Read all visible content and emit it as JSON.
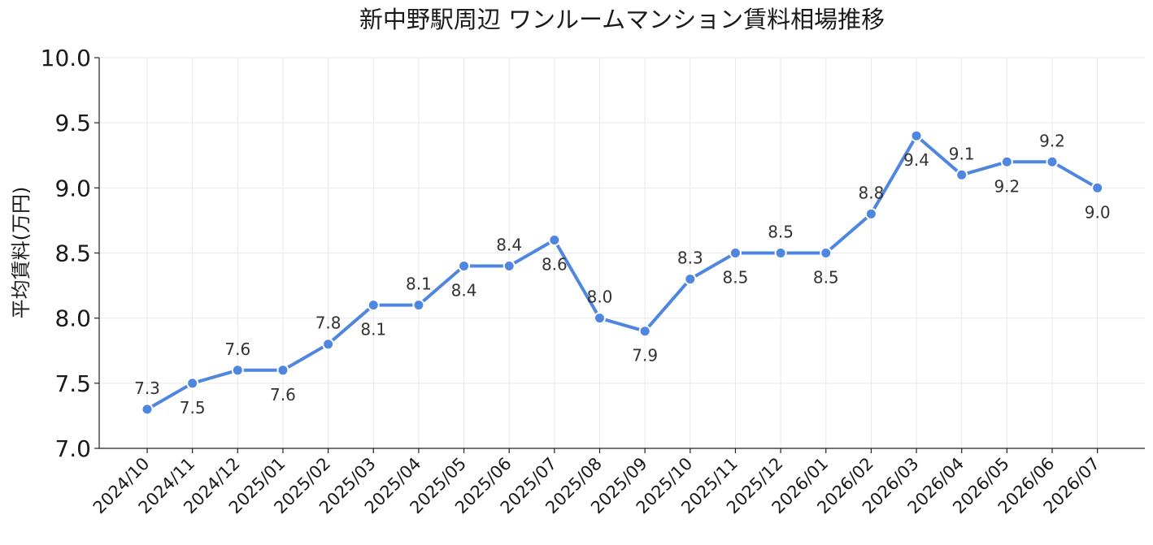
{
  "chart_data": {
    "type": "line",
    "title": "新中野駅周辺 ワンルームマンション賃料相場推移",
    "xlabel": "",
    "ylabel": "平均賃料(万円)",
    "ylim": [
      7.0,
      10.0
    ],
    "yticks": [
      "7.0",
      "7.5",
      "8.0",
      "8.5",
      "9.0",
      "9.5",
      "10.0"
    ],
    "grid": true,
    "color": "#4f86e0",
    "categories": [
      "2024/10",
      "2024/11",
      "2024/12",
      "2025/01",
      "2025/02",
      "2025/03",
      "2025/04",
      "2025/05",
      "2025/06",
      "2025/07",
      "2025/08",
      "2025/09",
      "2025/10",
      "2025/11",
      "2025/12",
      "2026/01",
      "2026/02",
      "2026/03",
      "2026/04",
      "2026/05",
      "2026/06",
      "2026/07"
    ],
    "series": [
      {
        "values": [
          7.3,
          7.5,
          7.6,
          7.6,
          7.8,
          8.1,
          8.1,
          8.4,
          8.4,
          8.6,
          8.0,
          7.9,
          8.3,
          8.5,
          8.5,
          8.5,
          8.8,
          9.4,
          9.1,
          9.2,
          9.2,
          9.0
        ],
        "labels": [
          "7.3",
          "7.5",
          "7.6",
          "7.6",
          "7.8",
          "8.1",
          "8.1",
          "8.4",
          "8.4",
          "8.6",
          "8.0",
          "7.9",
          "8.3",
          "8.5",
          "8.5",
          "8.5",
          "8.8",
          "9.4",
          "9.1",
          "9.2",
          "9.2",
          "9.0"
        ]
      }
    ]
  }
}
